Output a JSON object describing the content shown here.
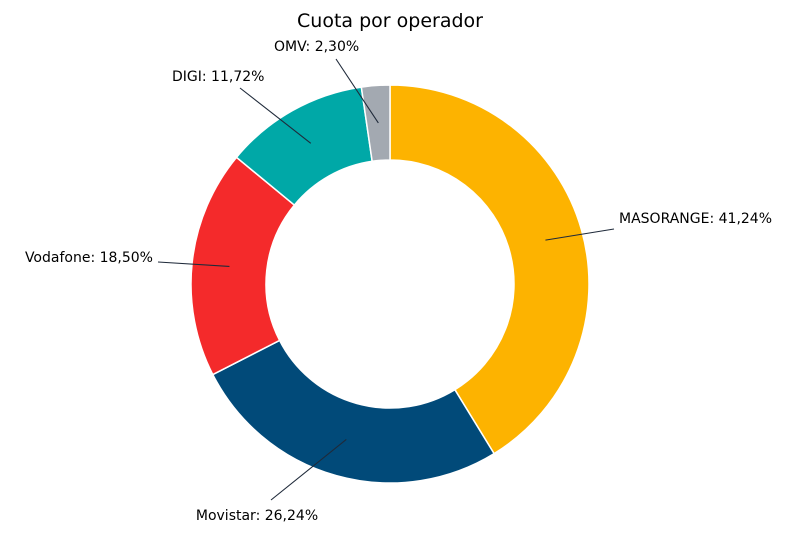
{
  "chart_data": {
    "type": "pie",
    "title": "Cuota por operador",
    "slices": [
      {
        "name": "MASORANGE",
        "value": 41.24,
        "label": "MASORANGE: 41,24%",
        "color": "#FDB300"
      },
      {
        "name": "Movistar",
        "value": 26.24,
        "label": "Movistar: 26,24%",
        "color": "#014A79"
      },
      {
        "name": "Vodafone",
        "value": 18.5,
        "label": "Vodafone: 18,50%",
        "color": "#F42A2B"
      },
      {
        "name": "DIGI",
        "value": 11.72,
        "label": "DIGI: 11,72%",
        "color": "#00A8A7"
      },
      {
        "name": "OMV",
        "value": 2.3,
        "label": "OMV: 2,30%",
        "color": "#A3A9B1"
      }
    ],
    "donut": true,
    "start": "12 o'clock",
    "direction": "clockwise"
  }
}
